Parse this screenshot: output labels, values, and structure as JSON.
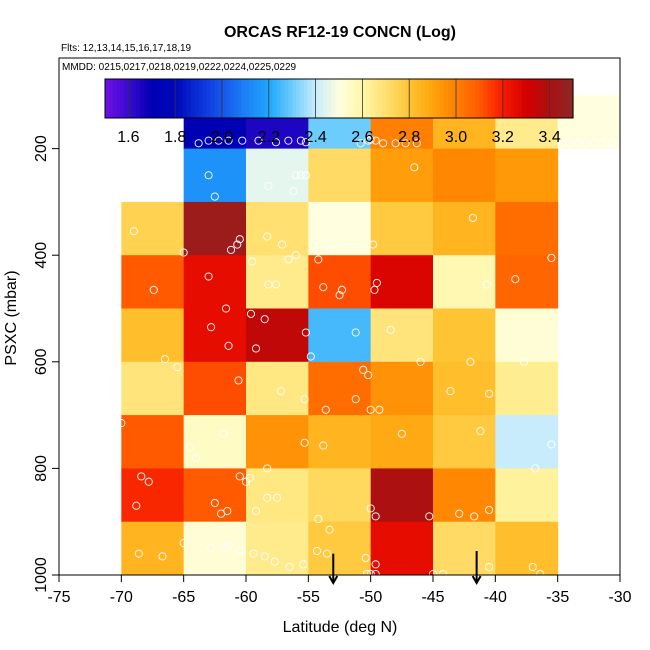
{
  "chart_data": {
    "type": "heatmap",
    "title": "ORCAS RF12-19 CONCN (Log)",
    "subtitle_flights": "Flts: 12,13,14,15,16,17,18,19",
    "subtitle_dates": "MMDD: 0215,0217,0218,0219,0222,0224,0225,0229",
    "xlabel": "Latitude (deg N)",
    "ylabel": "PSXC (mbar)",
    "xlim": [
      -75,
      -30
    ],
    "ylim": [
      1000,
      30
    ],
    "x_ticks": [
      -75,
      -70,
      -65,
      -60,
      -55,
      -50,
      -45,
      -40,
      -35,
      -30
    ],
    "y_ticks": [
      200,
      400,
      600,
      800,
      1000
    ],
    "x_tick_labels": [
      "-75",
      "-70",
      "-65",
      "-60",
      "-55",
      "-50",
      "-45",
      "-40",
      "-35",
      "-30"
    ],
    "y_tick_labels": [
      "200",
      "400",
      "600",
      "800",
      "1000"
    ],
    "colorbar": {
      "range": [
        1.5,
        3.5
      ],
      "ticks": [
        1.6,
        1.8,
        2.0,
        2.2,
        2.4,
        2.6,
        2.8,
        3.0,
        3.2,
        3.4
      ],
      "tick_labels": [
        "1.6",
        "1.8",
        "2.0",
        "2.2",
        "2.4",
        "2.6",
        "2.8",
        "3.0",
        "3.2",
        "3.4"
      ],
      "colors": [
        "#6f10e6",
        "#3a0ad0",
        "#0000b4",
        "#0008b8",
        "#0a2ed8",
        "#1656ec",
        "#1c80f6",
        "#1fa6fc",
        "#6cccfc",
        "#c8ecfc",
        "#ffffe0",
        "#fff6a8",
        "#ffe070",
        "#ffc434",
        "#ffa40c",
        "#ff8000",
        "#ff5a00",
        "#f81a00",
        "#d40000",
        "#ac1010",
        "#8c2828"
      ]
    },
    "cell_size": {
      "lat_deg": 5,
      "pres_mbar": 100
    },
    "cells": [
      {
        "lat": -65,
        "p": 100,
        "v": 1.7
      },
      {
        "lat": -60,
        "p": 100,
        "v": 1.65
      },
      {
        "lat": -55,
        "p": 100,
        "v": 2.3
      },
      {
        "lat": -50,
        "p": 100,
        "v": 3.0
      },
      {
        "lat": -45,
        "p": 100,
        "v": 2.85
      },
      {
        "lat": -40,
        "p": 100,
        "v": 2.65
      },
      {
        "lat": -35,
        "p": 100,
        "v": 2.5
      },
      {
        "lat": -65,
        "p": 200,
        "v": 2.15
      },
      {
        "lat": -60,
        "p": 200,
        "v": 2.45
      },
      {
        "lat": -55,
        "p": 200,
        "v": 2.72
      },
      {
        "lat": -50,
        "p": 200,
        "v": 2.92
      },
      {
        "lat": -45,
        "p": 200,
        "v": 2.98
      },
      {
        "lat": -40,
        "p": 200,
        "v": 2.93
      },
      {
        "lat": -70,
        "p": 300,
        "v": 2.75
      },
      {
        "lat": -65,
        "p": 300,
        "v": 3.45
      },
      {
        "lat": -60,
        "p": 300,
        "v": 2.7
      },
      {
        "lat": -55,
        "p": 300,
        "v": 2.5
      },
      {
        "lat": -50,
        "p": 300,
        "v": 2.78
      },
      {
        "lat": -45,
        "p": 300,
        "v": 2.85
      },
      {
        "lat": -40,
        "p": 300,
        "v": 3.05
      },
      {
        "lat": -70,
        "p": 400,
        "v": 3.1
      },
      {
        "lat": -65,
        "p": 400,
        "v": 3.25
      },
      {
        "lat": -60,
        "p": 400,
        "v": 2.65
      },
      {
        "lat": -55,
        "p": 400,
        "v": 3.12
      },
      {
        "lat": -50,
        "p": 400,
        "v": 3.28
      },
      {
        "lat": -45,
        "p": 400,
        "v": 2.58
      },
      {
        "lat": -40,
        "p": 400,
        "v": 3.07
      },
      {
        "lat": -70,
        "p": 500,
        "v": 2.82
      },
      {
        "lat": -65,
        "p": 500,
        "v": 3.25
      },
      {
        "lat": -60,
        "p": 500,
        "v": 3.35
      },
      {
        "lat": -55,
        "p": 500,
        "v": 2.25
      },
      {
        "lat": -50,
        "p": 500,
        "v": 2.68
      },
      {
        "lat": -45,
        "p": 500,
        "v": 2.8
      },
      {
        "lat": -40,
        "p": 500,
        "v": 2.52
      },
      {
        "lat": -70,
        "p": 600,
        "v": 2.68
      },
      {
        "lat": -65,
        "p": 600,
        "v": 3.12
      },
      {
        "lat": -60,
        "p": 600,
        "v": 2.67
      },
      {
        "lat": -55,
        "p": 600,
        "v": 3.05
      },
      {
        "lat": -50,
        "p": 600,
        "v": 2.95
      },
      {
        "lat": -45,
        "p": 600,
        "v": 2.82
      },
      {
        "lat": -40,
        "p": 600,
        "v": 2.64
      },
      {
        "lat": -70,
        "p": 700,
        "v": 3.1
      },
      {
        "lat": -65,
        "p": 700,
        "v": 2.55
      },
      {
        "lat": -60,
        "p": 700,
        "v": 2.95
      },
      {
        "lat": -55,
        "p": 700,
        "v": 2.85
      },
      {
        "lat": -50,
        "p": 700,
        "v": 2.88
      },
      {
        "lat": -45,
        "p": 700,
        "v": 2.78
      },
      {
        "lat": -40,
        "p": 700,
        "v": 2.4
      },
      {
        "lat": -70,
        "p": 800,
        "v": 3.18
      },
      {
        "lat": -65,
        "p": 800,
        "v": 3.1
      },
      {
        "lat": -60,
        "p": 800,
        "v": 2.67
      },
      {
        "lat": -55,
        "p": 800,
        "v": 2.73
      },
      {
        "lat": -50,
        "p": 800,
        "v": 3.4
      },
      {
        "lat": -45,
        "p": 800,
        "v": 2.98
      },
      {
        "lat": -40,
        "p": 800,
        "v": 2.62
      },
      {
        "lat": -70,
        "p": 900,
        "v": 2.85
      },
      {
        "lat": -65,
        "p": 900,
        "v": 2.52
      },
      {
        "lat": -60,
        "p": 900,
        "v": 2.65
      },
      {
        "lat": -55,
        "p": 900,
        "v": 2.78
      },
      {
        "lat": -50,
        "p": 900,
        "v": 3.25
      },
      {
        "lat": -45,
        "p": 900,
        "v": 2.72
      },
      {
        "lat": -40,
        "p": 900,
        "v": 2.82
      }
    ],
    "sample_points": [
      [
        -63.8,
        190
      ],
      [
        -63,
        185
      ],
      [
        -62.2,
        185
      ],
      [
        -61.4,
        185
      ],
      [
        -60.3,
        185
      ],
      [
        -59,
        185
      ],
      [
        -57.6,
        188
      ],
      [
        -56.6,
        185
      ],
      [
        -55.6,
        185
      ],
      [
        -55.2,
        188
      ],
      [
        -50.8,
        190
      ],
      [
        -50.2,
        185
      ],
      [
        -50,
        183
      ],
      [
        -49.6,
        185
      ],
      [
        -49,
        190
      ],
      [
        -48,
        190
      ],
      [
        -47.2,
        190
      ],
      [
        -46.3,
        190
      ],
      [
        -34.6,
        190
      ],
      [
        -34,
        190
      ],
      [
        -33.3,
        190
      ],
      [
        -32.7,
        190
      ],
      [
        -32,
        190
      ],
      [
        -31.4,
        190
      ],
      [
        -30.6,
        190
      ],
      [
        -30,
        190
      ],
      [
        -63,
        250
      ],
      [
        -62.5,
        290
      ],
      [
        -58.2,
        270
      ],
      [
        -56,
        250
      ],
      [
        -55.6,
        250
      ],
      [
        -55.2,
        250
      ],
      [
        -56.2,
        280
      ],
      [
        -46.5,
        235
      ],
      [
        -69,
        355
      ],
      [
        -65,
        395
      ],
      [
        -61.2,
        390
      ],
      [
        -60.7,
        380
      ],
      [
        -60.5,
        370
      ],
      [
        -58.3,
        365
      ],
      [
        -57.1,
        380
      ],
      [
        -56,
        400
      ],
      [
        -56.6,
        408
      ],
      [
        -54.2,
        408
      ],
      [
        -53.3,
        390
      ],
      [
        -49.8,
        380
      ],
      [
        -41.8,
        330
      ],
      [
        -35.5,
        405
      ],
      [
        -59.5,
        412
      ],
      [
        -58.2,
        455
      ],
      [
        -57.6,
        455
      ],
      [
        -67.4,
        465
      ],
      [
        -63,
        440
      ],
      [
        -53.8,
        460
      ],
      [
        -52.3,
        465
      ],
      [
        -52.5,
        475
      ],
      [
        -49.5,
        452
      ],
      [
        -49.7,
        465
      ],
      [
        -38.4,
        445
      ],
      [
        -40.7,
        455
      ],
      [
        -61.6,
        500
      ],
      [
        -59.6,
        510
      ],
      [
        -62.8,
        535
      ],
      [
        -58.5,
        520
      ],
      [
        -55.2,
        545
      ],
      [
        -51.2,
        545
      ],
      [
        -48.4,
        540
      ],
      [
        -61.4,
        570
      ],
      [
        -59.2,
        575
      ],
      [
        -54.8,
        590
      ],
      [
        -50.6,
        615
      ],
      [
        -50.2,
        625
      ],
      [
        -46,
        600
      ],
      [
        -42,
        600
      ],
      [
        -37.7,
        600
      ],
      [
        -66.5,
        595
      ],
      [
        -65.5,
        610
      ],
      [
        -60.6,
        635
      ],
      [
        -57.2,
        655
      ],
      [
        -51.2,
        670
      ],
      [
        -50,
        690
      ],
      [
        -49.3,
        690
      ],
      [
        -43.6,
        655
      ],
      [
        -40.5,
        660
      ],
      [
        -55.3,
        670
      ],
      [
        -53.6,
        690
      ],
      [
        -70,
        715
      ],
      [
        -61.8,
        735
      ],
      [
        -55.3,
        752
      ],
      [
        -53.8,
        757
      ],
      [
        -47.5,
        735
      ],
      [
        -41.2,
        730
      ],
      [
        -35.5,
        755
      ],
      [
        -68.4,
        815
      ],
      [
        -67.8,
        825
      ],
      [
        -64.5,
        760
      ],
      [
        -64,
        780
      ],
      [
        -60.5,
        815
      ],
      [
        -59.7,
        818
      ],
      [
        -60,
        825
      ],
      [
        -58.3,
        800
      ],
      [
        -36.8,
        800
      ],
      [
        -42.9,
        885
      ],
      [
        -68.8,
        870
      ],
      [
        -62.5,
        865
      ],
      [
        -61.5,
        880
      ],
      [
        -62,
        885
      ],
      [
        -59.2,
        880
      ],
      [
        -57.5,
        855
      ],
      [
        -58.3,
        855
      ],
      [
        -54.2,
        895
      ],
      [
        -53.3,
        915
      ],
      [
        -50,
        875
      ],
      [
        -49.6,
        890
      ],
      [
        -45.3,
        890
      ],
      [
        -41.7,
        890
      ],
      [
        -40.5,
        878
      ],
      [
        -68.6,
        960
      ],
      [
        -66.7,
        965
      ],
      [
        -65,
        940
      ],
      [
        -62.8,
        950
      ],
      [
        -61.6,
        950
      ],
      [
        -61.4,
        945
      ],
      [
        -60.5,
        955
      ],
      [
        -59.4,
        960
      ],
      [
        -58.5,
        965
      ],
      [
        -57.7,
        975
      ],
      [
        -56.5,
        985
      ],
      [
        -55.4,
        980
      ],
      [
        -54.3,
        955
      ],
      [
        -53.5,
        960
      ],
      [
        -50.4,
        968
      ],
      [
        -49.6,
        980
      ],
      [
        -50.3,
        1000
      ],
      [
        -50,
        1000
      ],
      [
        -49.6,
        1000
      ],
      [
        -45,
        1000
      ],
      [
        -44.2,
        1000
      ],
      [
        -36.4,
        1000
      ],
      [
        -37,
        985
      ],
      [
        -40.5,
        985
      ]
    ],
    "arrows": [
      {
        "lat": -53,
        "p_top": 960,
        "p_tip": 1015
      },
      {
        "lat": -41.5,
        "p_top": 955,
        "p_tip": 1015
      }
    ]
  }
}
